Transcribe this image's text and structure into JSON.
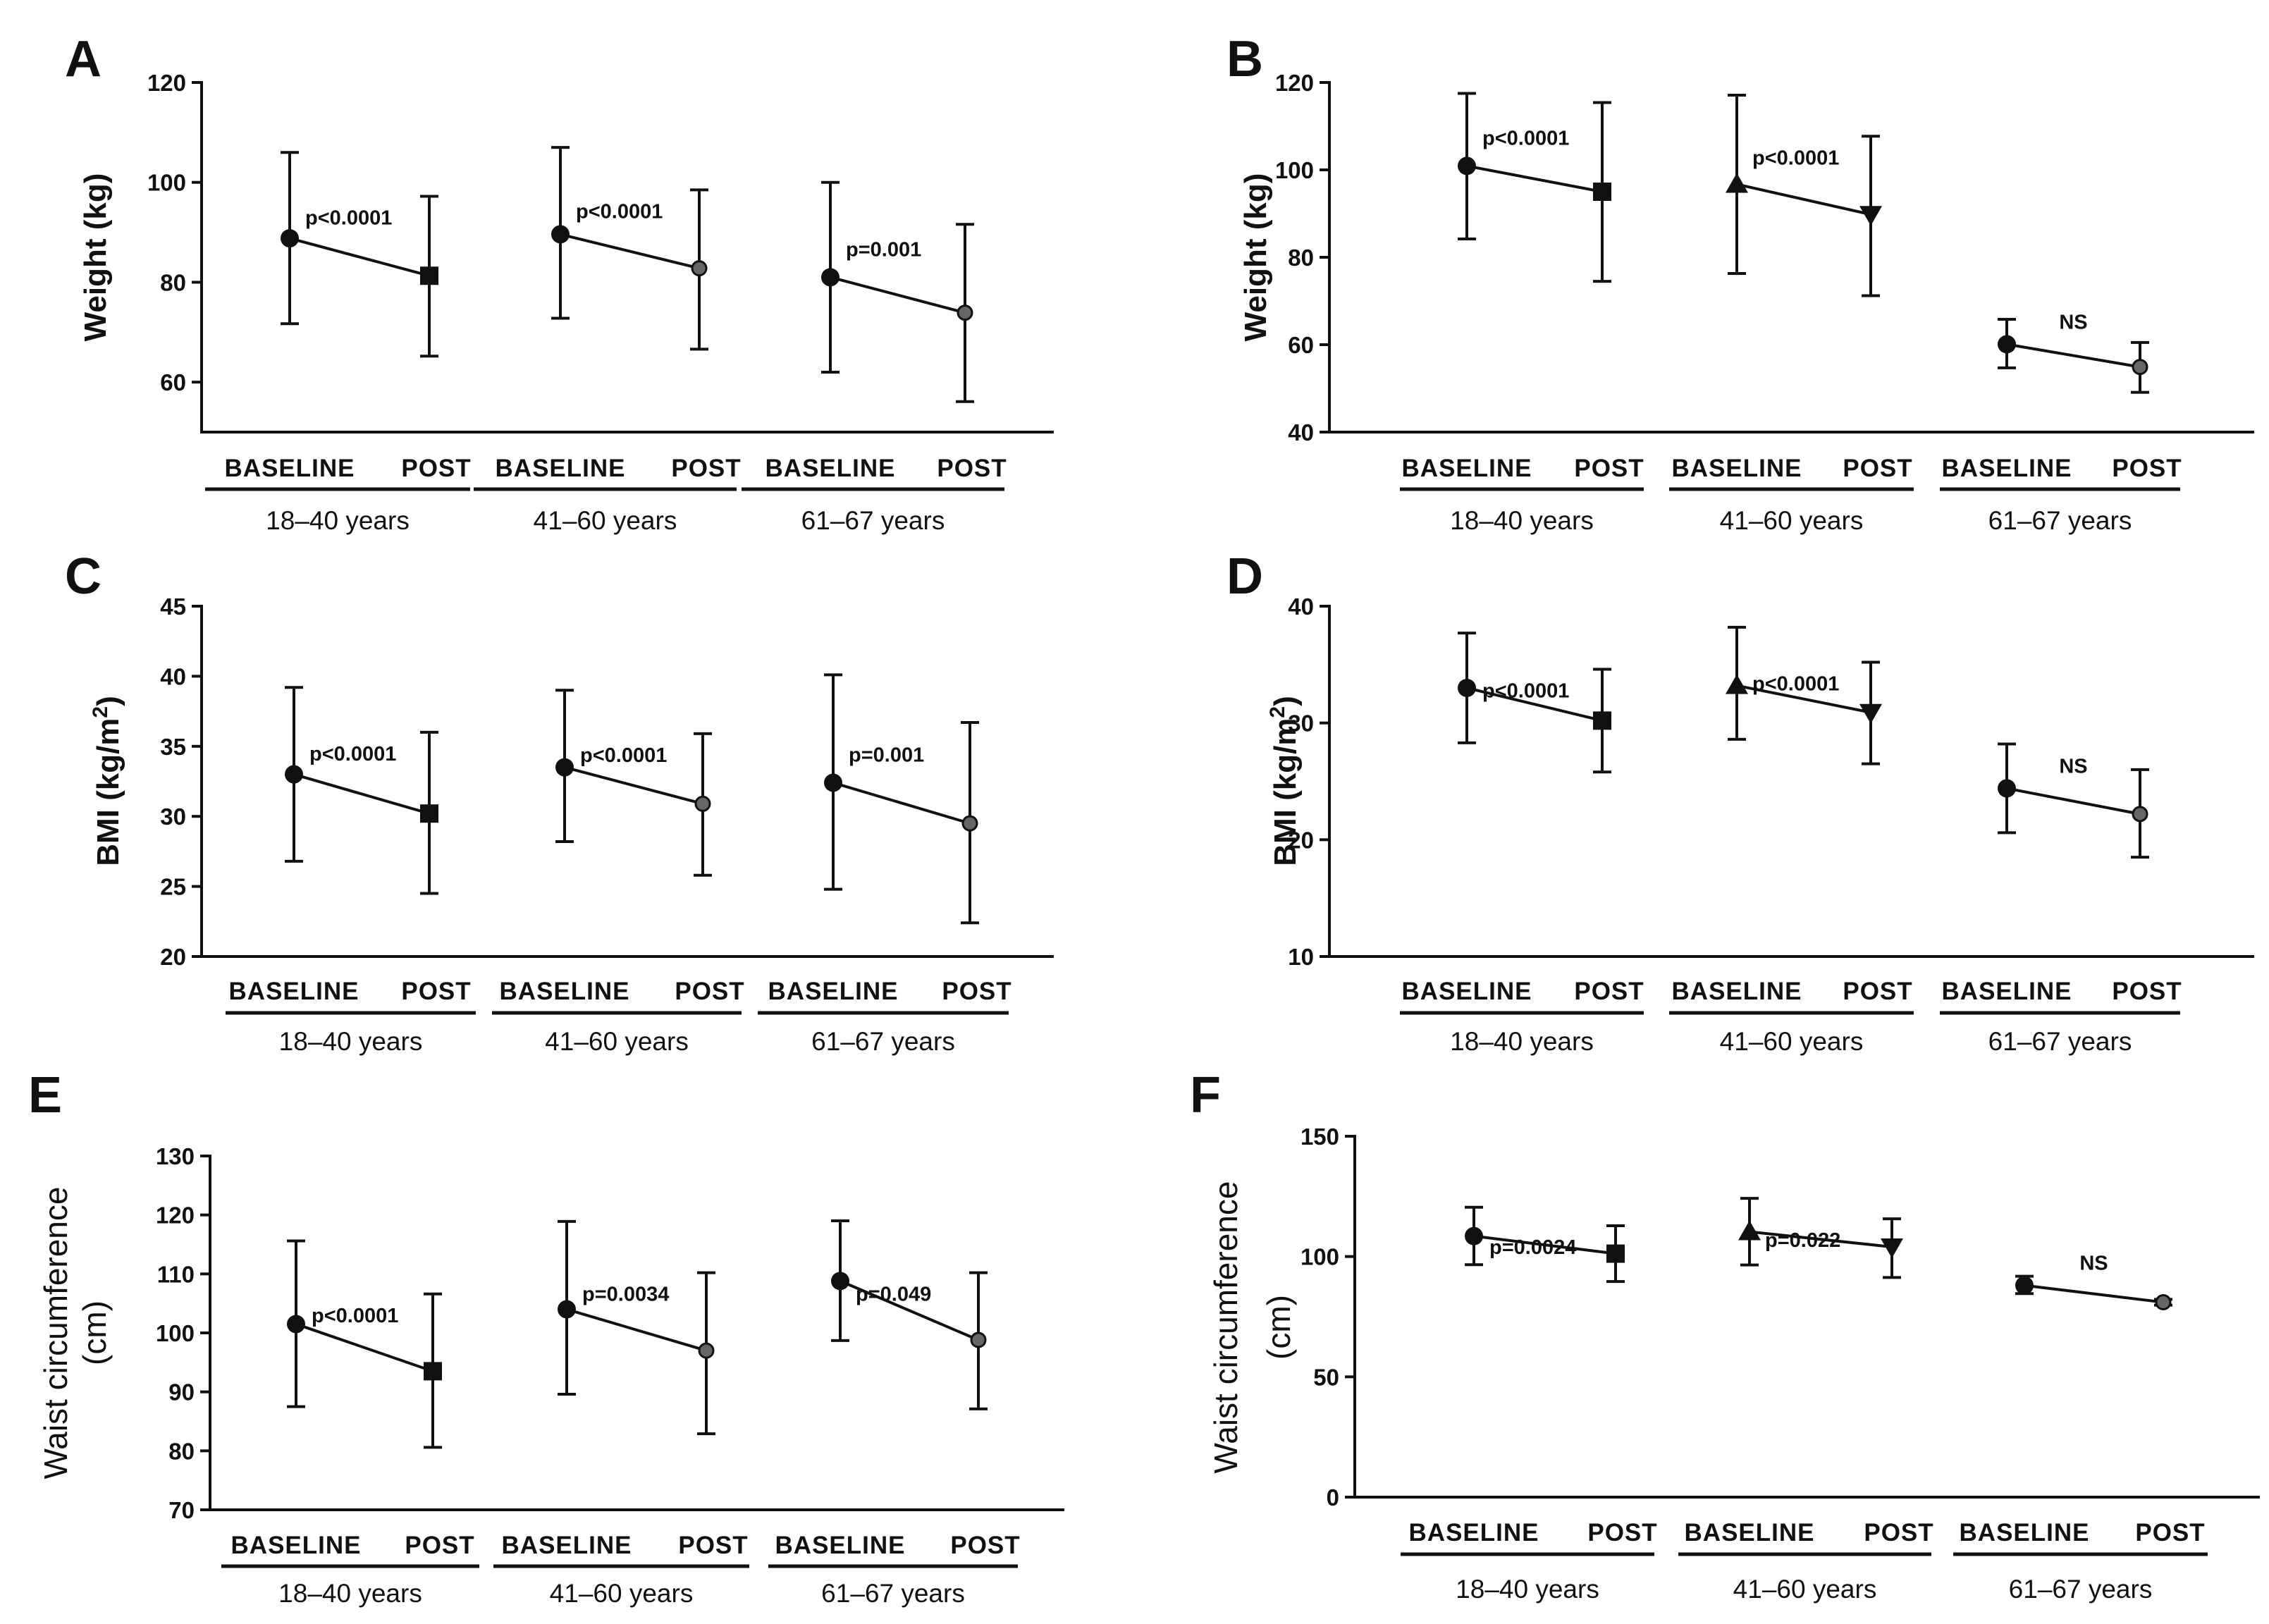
{
  "figure": {
    "timepoints": [
      "BASELINE",
      "POST"
    ],
    "groups": [
      "18–40 years",
      "41–60 years",
      "61–67 years"
    ]
  },
  "chart_data": [
    {
      "panel": "A",
      "type": "line",
      "ylabel": "Weight (kg)",
      "ylim": [
        50,
        120
      ],
      "yticks": [
        60,
        80,
        100,
        120
      ],
      "groups": [
        {
          "name": "18–40 years",
          "marker": "circle",
          "mean": [
            88.8,
            81.3
          ],
          "err_high": [
            106.0,
            97.2
          ],
          "err_low": [
            71.7,
            65.2
          ],
          "annotation": "p<0.0001"
        },
        {
          "name": "41–60 years",
          "marker": "circle",
          "mean": [
            89.6,
            82.8
          ],
          "err_high": [
            107.0,
            98.5
          ],
          "err_low": [
            72.8,
            66.6
          ],
          "annotation": "p<0.0001"
        },
        {
          "name": "61–67 years",
          "marker": "circle",
          "mean": [
            81.0,
            73.9
          ],
          "err_high": [
            100.0,
            91.6
          ],
          "err_low": [
            62.0,
            56.1
          ],
          "annotation": "p=0.001"
        }
      ]
    },
    {
      "panel": "B",
      "type": "line",
      "ylabel": "Weight (kg)",
      "ylim": [
        40,
        120
      ],
      "yticks": [
        40,
        60,
        80,
        100,
        120
      ],
      "groups": [
        {
          "name": "18–40 years",
          "marker": "circle",
          "mean": [
            100.9,
            95.0
          ],
          "err_high": [
            117.5,
            115.4
          ],
          "err_low": [
            84.2,
            74.5
          ],
          "annotation": "p<0.0001"
        },
        {
          "name": "41–60 years",
          "marker": "triangle",
          "mean": [
            96.7,
            89.8
          ],
          "err_high": [
            117.1,
            107.7
          ],
          "err_low": [
            76.3,
            71.2
          ],
          "annotation": "p<0.0001"
        },
        {
          "name": "61–67 years",
          "marker": "circle",
          "mean": [
            60.1,
            54.9
          ],
          "err_high": [
            65.8,
            60.5
          ],
          "err_low": [
            54.7,
            49.1
          ],
          "annotation": "NS"
        }
      ]
    },
    {
      "panel": "C",
      "type": "line",
      "ylabel": "BMI (kg/m",
      "ylabel_sup": "2",
      "ylabel_end": ")",
      "ylim": [
        20,
        45
      ],
      "yticks": [
        20,
        25,
        30,
        35,
        40,
        45
      ],
      "groups": [
        {
          "name": "18–40 years",
          "marker": "circle",
          "mean": [
            33.0,
            30.2
          ],
          "err_high": [
            39.2,
            36.0
          ],
          "err_low": [
            26.8,
            24.5
          ],
          "annotation": "p<0.0001"
        },
        {
          "name": "41–60 years",
          "marker": "circle",
          "mean": [
            33.5,
            30.9
          ],
          "err_high": [
            39.0,
            35.9
          ],
          "err_low": [
            28.2,
            25.8
          ],
          "annotation": "p<0.0001"
        },
        {
          "name": "61–67 years",
          "marker": "circle",
          "mean": [
            32.4,
            29.5
          ],
          "err_high": [
            40.1,
            36.7
          ],
          "err_low": [
            24.8,
            22.4
          ],
          "annotation": "p=0.001"
        }
      ]
    },
    {
      "panel": "D",
      "type": "line",
      "ylabel": "BMI (kg/m",
      "ylabel_sup": "2",
      "ylabel_end": ")",
      "ylim": [
        10,
        40
      ],
      "yticks": [
        10,
        20,
        30,
        40
      ],
      "groups": [
        {
          "name": "18–40 years",
          "marker": "circle",
          "mean": [
            33.0,
            30.2
          ],
          "err_high": [
            37.7,
            34.6
          ],
          "err_low": [
            28.3,
            25.8
          ],
          "annotation": "p<0.0001"
        },
        {
          "name": "41–60 years",
          "marker": "triangle",
          "mean": [
            33.2,
            30.9
          ],
          "err_high": [
            38.2,
            35.2
          ],
          "err_low": [
            28.6,
            26.5
          ],
          "annotation": "p<0.0001"
        },
        {
          "name": "61–67 years",
          "marker": "circle",
          "mean": [
            24.4,
            22.2
          ],
          "err_high": [
            28.2,
            26.0
          ],
          "err_low": [
            20.6,
            18.5
          ],
          "annotation": "NS"
        }
      ]
    },
    {
      "panel": "E",
      "type": "line",
      "ylabel": "Waist circumference",
      "ylabel2": "(cm)",
      "ylim": [
        70,
        130
      ],
      "yticks": [
        70,
        80,
        90,
        100,
        110,
        120,
        130
      ],
      "groups": [
        {
          "name": "18–40 years",
          "marker": "circle",
          "mean": [
            101.5,
            93.5
          ],
          "err_high": [
            115.6,
            106.6
          ],
          "err_low": [
            87.5,
            80.6
          ],
          "annotation": "p<0.0001"
        },
        {
          "name": "41–60 years",
          "marker": "circle",
          "mean": [
            104.0,
            97.0
          ],
          "err_high": [
            118.9,
            110.2
          ],
          "err_low": [
            89.6,
            82.9
          ],
          "annotation": "p=0.0034"
        },
        {
          "name": "61–67 years",
          "marker": "circle",
          "mean": [
            108.8,
            98.8
          ],
          "err_high": [
            119.0,
            110.2
          ],
          "err_low": [
            98.7,
            87.1
          ],
          "annotation": "p=0.049"
        }
      ]
    },
    {
      "panel": "F",
      "type": "line",
      "ylabel": "Waist circumference",
      "ylabel2": "(cm)",
      "ylim": [
        0,
        150
      ],
      "yticks": [
        0,
        50,
        100,
        150
      ],
      "groups": [
        {
          "name": "18–40 years",
          "marker": "circle",
          "mean": [
            108.5,
            101.2
          ],
          "err_high": [
            120.5,
            112.8
          ],
          "err_low": [
            96.6,
            89.6
          ],
          "annotation": "p=0.0024"
        },
        {
          "name": "41–60 years",
          "marker": "triangle",
          "mean": [
            110.3,
            104.0
          ],
          "err_high": [
            124.2,
            115.7
          ],
          "err_low": [
            96.5,
            91.3
          ],
          "annotation": "p=0.022"
        },
        {
          "name": "61–67 years",
          "marker": "circle",
          "mean": [
            88.0,
            81.0
          ],
          "err_high": [
            91.8,
            82.2
          ],
          "err_low": [
            84.6,
            79.8
          ],
          "annotation": "NS"
        }
      ]
    }
  ]
}
